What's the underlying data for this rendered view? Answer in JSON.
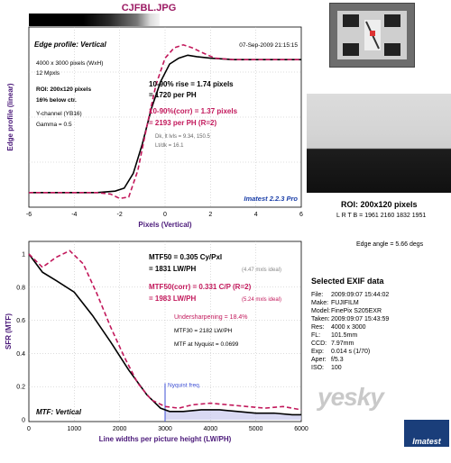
{
  "file_title": "CJFBL.JPG",
  "chart_data": [
    {
      "type": "line",
      "title": "Edge profile: Vertical",
      "date": "07-Sep-2009 21:15:15",
      "xlabel": "Pixels (Vertical)",
      "ylabel": "Edge profile (linear)",
      "xlim": [
        -6,
        6
      ],
      "xticks": [
        "-6",
        "-4",
        "-2",
        "0",
        "2",
        "4",
        "6"
      ],
      "series": [
        {
          "color": "#000000",
          "style": "solid",
          "x": [
            -6,
            -3,
            -2.2,
            -1.8,
            -1.4,
            -1.0,
            -0.6,
            -0.2,
            0.2,
            0.6,
            1.0,
            1.4,
            2.0,
            3,
            4,
            6
          ],
          "y": [
            0.05,
            0.05,
            0.06,
            0.08,
            0.18,
            0.38,
            0.62,
            0.8,
            0.92,
            0.96,
            0.98,
            0.97,
            0.96,
            0.95,
            0.95,
            0.95
          ]
        },
        {
          "color": "#c2185b",
          "style": "dashed",
          "x": [
            -6,
            -3,
            -2.4,
            -2.0,
            -1.6,
            -1.2,
            -0.8,
            -0.4,
            0,
            0.4,
            0.8,
            1.2,
            1.6,
            2.2,
            3,
            4,
            6
          ],
          "y": [
            0.05,
            0.05,
            0.04,
            0.01,
            0.02,
            0.2,
            0.5,
            0.78,
            0.96,
            1.03,
            1.05,
            1.03,
            1.0,
            0.96,
            0.95,
            0.95,
            0.95
          ]
        }
      ],
      "info_lines": [
        "4000 x 3000 pixels (WxH)",
        "12 Mpxls",
        "ROI: 200x120 pixels",
        "16% below ctr.",
        "Y-channel (YB16)",
        "Gamma = 0.5"
      ],
      "rise_text_1": "10-90% rise = 1.74 pixels",
      "rise_text_2": "= 1720 per PH",
      "corr_text_1": "10-90%(corr) = 1.37 pixels",
      "corr_text_2": "= 2193 per PH  (R=2)",
      "dk_lt_1": "Dk, lt lvls = 9.34, 150.5",
      "dk_lt_2": "Lt/dk = 16.1",
      "version": "Imatest 2.2.3 Pro"
    },
    {
      "type": "line",
      "title": "MTF: Vertical",
      "xlabel": "Line widths per picture height (LW/PH)",
      "ylabel": "SFR (MTF)",
      "xlim": [
        0,
        6000
      ],
      "ylim": [
        0,
        1
      ],
      "xticks": [
        "0",
        "1000",
        "2000",
        "3000",
        "4000",
        "5000",
        "6000"
      ],
      "yticks": [
        "0",
        "0.2",
        "0.4",
        "0.6",
        "0.8",
        "1"
      ],
      "series": [
        {
          "color": "#000000",
          "style": "solid",
          "x": [
            0,
            300,
            600,
            1000,
            1400,
            1800,
            2200,
            2600,
            2900,
            3100,
            3400,
            3800,
            4200,
            4600,
            5000,
            5400,
            5800,
            6000
          ],
          "y": [
            1.0,
            0.89,
            0.84,
            0.77,
            0.63,
            0.47,
            0.3,
            0.15,
            0.07,
            0.05,
            0.05,
            0.06,
            0.06,
            0.05,
            0.04,
            0.04,
            0.03,
            0.03
          ]
        },
        {
          "color": "#c2185b",
          "style": "dashed",
          "x": [
            0,
            300,
            600,
            900,
            1200,
            1500,
            1800,
            2100,
            2400,
            2700,
            3000,
            3300,
            3600,
            4000,
            4400,
            4800,
            5200,
            5600,
            6000
          ],
          "y": [
            1.0,
            0.92,
            0.98,
            1.02,
            0.94,
            0.76,
            0.56,
            0.38,
            0.22,
            0.12,
            0.08,
            0.07,
            0.09,
            0.1,
            0.09,
            0.08,
            0.07,
            0.08,
            0.06
          ]
        }
      ],
      "mtf50_1": "MTF50 = 0.305 Cy/Pxl",
      "mtf50_2": "= 1831 LW/PH",
      "mtf50_ideal": "(4.47 mxls ideal)",
      "mtf50c_1": "MTF50(corr) = 0.331 C/P  (R=2)",
      "mtf50c_2": "= 1983 LW/PH",
      "mtf50c_ideal": "(5.24 mxls ideal)",
      "undersharp": "Undersharpening = 18.4%",
      "mtf30": "MTF30 = 2182 LW/PH",
      "mtf_nyq": "MTF at Nyquist = 0.0699",
      "nyquist_label": "Nyquist freq."
    }
  ],
  "side": {
    "roi_title": "ROI: 200x120 pixels",
    "roi_sub": "L R T B = 1961 2160  1832 1951",
    "edge_angle": "Edge angle = 5.66 degs",
    "exif_title": "Selected EXIF data",
    "exif": [
      [
        "File:",
        "2009:09:07 15:44:02"
      ],
      [
        "Make:",
        "FUJIFILM"
      ],
      [
        "Model:",
        "FinePix S205EXR"
      ],
      [
        "Taken:",
        "2009:09:07 15:43:59"
      ],
      [
        "Res:",
        "4000 x 3000"
      ],
      [
        "FL:",
        "101.5mm"
      ],
      [
        "CCD:",
        "7.97mm"
      ],
      [
        "Exp:",
        "0.014 s  (1/70)"
      ],
      [
        "Aper:",
        "f/5.3"
      ],
      [
        "ISO:",
        "100"
      ]
    ],
    "watermark": "yesky",
    "logo": "Imatest"
  }
}
